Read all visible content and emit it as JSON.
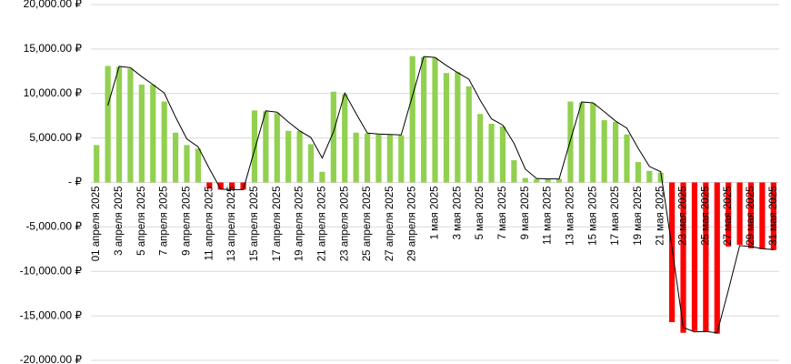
{
  "chart_data": {
    "type": "bar",
    "categories": [
      "01 апреля 2025",
      null,
      "3 апреля 2025",
      null,
      "5 апреля 2025",
      null,
      "7 апреля 2025",
      null,
      "9 апреля 2025",
      null,
      "11 апреля 2025",
      null,
      "13 апреля 2025",
      null,
      "15 апреля 2025",
      null,
      "17 апреля 2025",
      null,
      "19 апреля 2025",
      null,
      "21 апреля 2025",
      null,
      "23 апреля 2025",
      null,
      "25 апреля 2025",
      null,
      "27 апреля 2025",
      null,
      "29 апреля 2025",
      null,
      "1 мая 2025",
      null,
      "3 мая 2025",
      null,
      "5 мая 2025",
      null,
      "7 мая 2025",
      null,
      "9 мая 2025",
      null,
      "11 мая 2025",
      null,
      "13 мая 2025",
      null,
      "15 мая 2025",
      null,
      "17 мая 2025",
      null,
      "19 мая 2025",
      null,
      "21 мая 2025",
      null,
      "23 мая 2025",
      null,
      "25 мая 2025",
      null,
      "27 мая 2025",
      null,
      "29 мая 2025",
      null,
      "31 мая 2025"
    ],
    "values": [
      4200,
      13100,
      13000,
      12800,
      11000,
      11000,
      9100,
      5600,
      4200,
      3800,
      -700,
      -800,
      -800,
      -800,
      8100,
      8000,
      7800,
      5800,
      5800,
      4300,
      1200,
      10200,
      9900,
      5600,
      5500,
      5400,
      5400,
      5300,
      14200,
      14100,
      14000,
      12300,
      12400,
      10800,
      7700,
      6600,
      6300,
      2500,
      500,
      400,
      400,
      400,
      9100,
      9000,
      8900,
      7000,
      6800,
      5400,
      2300,
      1300,
      1100,
      -15700,
      -16900,
      -16700,
      -16800,
      -17000,
      -7200,
      -7000,
      -7400,
      -7500,
      -7600
    ],
    "line_values": [
      null,
      8650,
      13050,
      12900,
      11900,
      11000,
      10050,
      7350,
      4900,
      4000,
      1550,
      -750,
      -800,
      -800,
      3650,
      8050,
      7900,
      6800,
      5800,
      5050,
      2750,
      5700,
      10050,
      7750,
      5550,
      5450,
      5400,
      5350,
      9750,
      14150,
      14050,
      13150,
      12350,
      11600,
      9250,
      7150,
      6450,
      4400,
      1500,
      450,
      400,
      400,
      4750,
      9050,
      8950,
      7950,
      6900,
      6100,
      3850,
      1800,
      1200,
      -7300,
      -16300,
      -16800,
      -16750,
      -16900,
      -12100,
      -7100,
      -7200,
      -7450,
      -7550
    ],
    "positive_color": "#92d050",
    "negative_color": "#ff0000",
    "line_color": "#000000",
    "ylim": [
      -20000,
      20000
    ],
    "yticks": [
      {
        "value": -20000,
        "label": "-20,000.00 ₽"
      },
      {
        "value": -15000,
        "label": "-15,000.00 ₽"
      },
      {
        "value": -10000,
        "label": "-10,000.00 ₽"
      },
      {
        "value": -5000,
        "label": "-5,000.00 ₽"
      },
      {
        "value": 0,
        "label": "- ₽"
      },
      {
        "value": 5000,
        "label": "5,000.00 ₽"
      },
      {
        "value": 10000,
        "label": "10,000.00 ₽"
      },
      {
        "value": 15000,
        "label": "15,000.00 ₽"
      },
      {
        "value": 20000,
        "label": "20,000.00 ₽"
      }
    ],
    "grid": true
  }
}
